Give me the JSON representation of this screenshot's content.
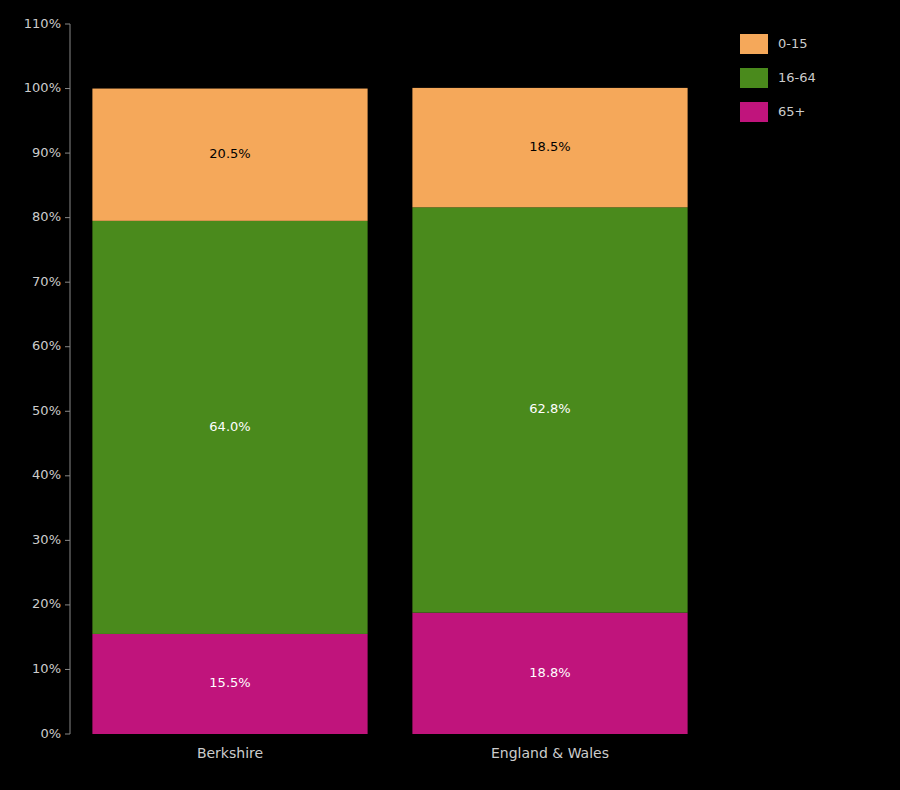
{
  "chart_data": {
    "type": "bar",
    "stacked": true,
    "data_labels": true,
    "grid": false,
    "legend": "right",
    "categories": [
      "Berkshire",
      "England & Wales"
    ],
    "series": [
      {
        "name": "65+",
        "color": "#C0147C",
        "values": [
          15.5,
          18.8
        ],
        "value_labels": [
          "15.5%",
          "18.8%"
        ]
      },
      {
        "name": "16-64",
        "color": "#4A8A1C",
        "values": [
          64.0,
          62.8
        ],
        "value_labels": [
          "64.0%",
          "62.8%"
        ]
      },
      {
        "name": "0-15",
        "color": "#F5A85A",
        "values": [
          20.5,
          18.5
        ],
        "value_labels": [
          "20.5%",
          "18.5%"
        ]
      }
    ],
    "ylim": [
      0,
      110
    ],
    "yticks": [
      {
        "value": 0,
        "label": "0%"
      },
      {
        "value": 10,
        "label": "10%"
      },
      {
        "value": 20,
        "label": "20%"
      },
      {
        "value": 30,
        "label": "30%"
      },
      {
        "value": 40,
        "label": "40%"
      },
      {
        "value": 50,
        "label": "50%"
      },
      {
        "value": 60,
        "label": "60%"
      },
      {
        "value": 70,
        "label": "70%"
      },
      {
        "value": 80,
        "label": "80%"
      },
      {
        "value": 90,
        "label": "90%"
      },
      {
        "value": 100,
        "label": "100%"
      },
      {
        "value": 110,
        "label": "110%"
      }
    ]
  }
}
